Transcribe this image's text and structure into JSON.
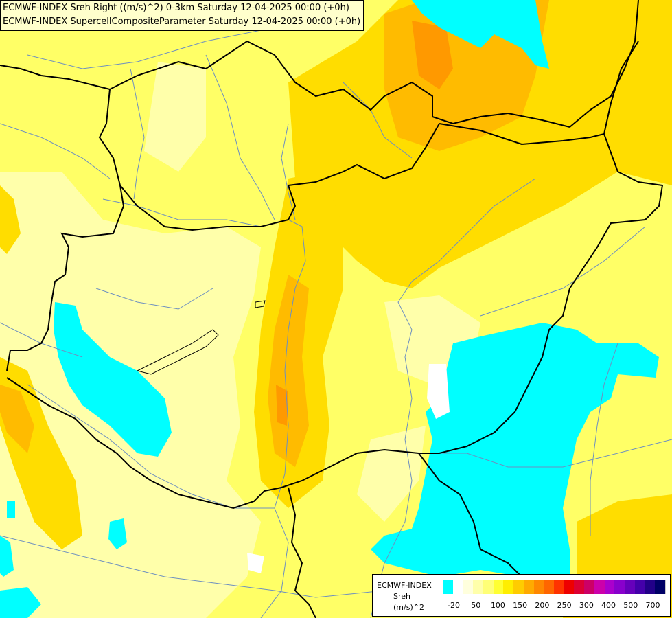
{
  "titles": {
    "line1": "ECMWF-INDEX Sreh Right ((m/s)^2) 0-3km Saturday 12-04-2025 00:00 (+0h)",
    "line2": "ECMWF-INDEX SupercellCompositeParameter Saturday 12-04-2025 00:00 (+0h)"
  },
  "legend": {
    "source": "ECMWF-INDEX",
    "parameter": "Sreh",
    "unit": "(m/s)^2",
    "colors": [
      "#00ffff",
      "#ffffff",
      "#ffffdd",
      "#ffffaa",
      "#ffff77",
      "#ffff33",
      "#ffee00",
      "#ffcc00",
      "#ffaa00",
      "#ff8800",
      "#ff6600",
      "#ff3300",
      "#ee0000",
      "#dd0033",
      "#cc0066",
      "#cc00aa",
      "#aa00cc",
      "#8800cc",
      "#6600bb",
      "#4400aa",
      "#220088",
      "#000066"
    ],
    "ticks": [
      "-20",
      "50",
      "100",
      "150",
      "200",
      "250",
      "300",
      "400",
      "500",
      "700"
    ]
  },
  "colors": {
    "cyan": "#00ffff",
    "pale_yellow": "#ffffaa",
    "yellow": "#ffff44",
    "gold": "#ffdd00",
    "orange": "#ffaa00",
    "dark_orange": "#ff8800"
  }
}
